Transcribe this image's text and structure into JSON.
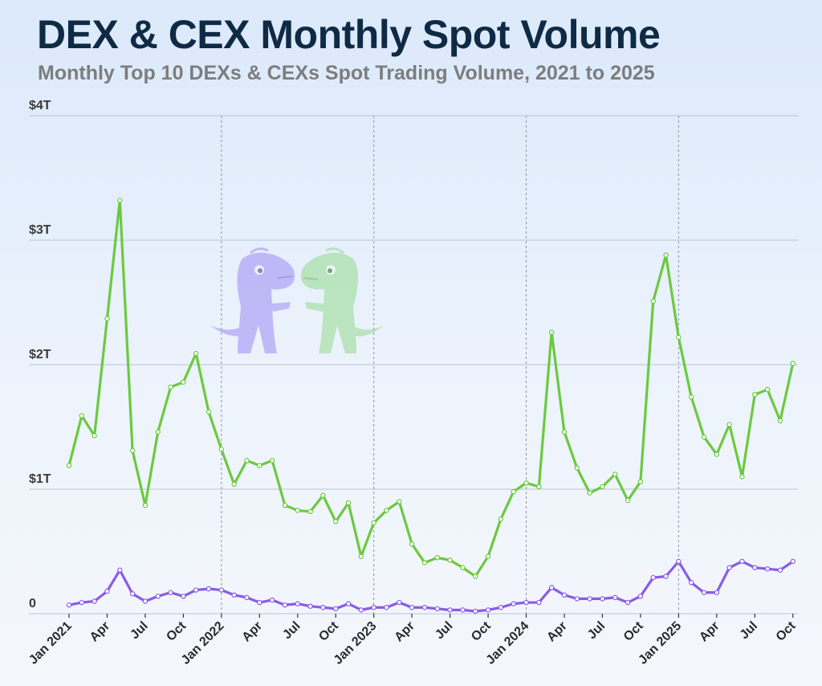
{
  "header": {
    "title": "DEX & CEX Monthly Spot Volume",
    "subtitle": "Monthly Top 10 DEXs & CEXs Spot Trading Volume, 2021 to 2025"
  },
  "colors": {
    "cex": "#6cc93f",
    "dex": "#8a5be8",
    "grid": "#b9c4d2",
    "year_divider": "#8a93a0"
  },
  "chart_data": {
    "type": "line",
    "x_unit": "month",
    "x_start": "2021-01",
    "ylim": [
      0,
      4
    ],
    "y_unit": "trillion USD",
    "yticks": [
      {
        "value": 0,
        "label": "0"
      },
      {
        "value": 1,
        "label": "$1T"
      },
      {
        "value": 2,
        "label": "$2T"
      },
      {
        "value": 3,
        "label": "$3T"
      },
      {
        "value": 4,
        "label": "$4T"
      }
    ],
    "xticks": [
      {
        "index": 0,
        "label": "Jan 2021"
      },
      {
        "index": 3,
        "label": "Apr"
      },
      {
        "index": 6,
        "label": "Jul"
      },
      {
        "index": 9,
        "label": "Oct"
      },
      {
        "index": 12,
        "label": "Jan 2022"
      },
      {
        "index": 15,
        "label": "Apr"
      },
      {
        "index": 18,
        "label": "Jul"
      },
      {
        "index": 21,
        "label": "Oct"
      },
      {
        "index": 24,
        "label": "Jan 2023"
      },
      {
        "index": 27,
        "label": "Apr"
      },
      {
        "index": 30,
        "label": "Jul"
      },
      {
        "index": 33,
        "label": "Oct"
      },
      {
        "index": 36,
        "label": "Jan 2024"
      },
      {
        "index": 39,
        "label": "Apr"
      },
      {
        "index": 42,
        "label": "Jul"
      },
      {
        "index": 45,
        "label": "Oct"
      },
      {
        "index": 48,
        "label": "Jan 2025"
      },
      {
        "index": 51,
        "label": "Apr"
      },
      {
        "index": 54,
        "label": "Jul"
      },
      {
        "index": 57,
        "label": "Oct"
      }
    ],
    "year_dividers": [
      12,
      24,
      36,
      48
    ],
    "grid": true,
    "series": [
      {
        "key": "cex",
        "values": [
          1.19,
          1.59,
          1.43,
          2.37,
          3.32,
          1.31,
          0.87,
          1.46,
          1.82,
          1.86,
          2.09,
          1.62,
          1.32,
          1.04,
          1.23,
          1.19,
          1.23,
          0.87,
          0.83,
          0.82,
          0.95,
          0.74,
          0.89,
          0.46,
          0.73,
          0.83,
          0.9,
          0.56,
          0.41,
          0.45,
          0.43,
          0.37,
          0.3,
          0.46,
          0.76,
          0.98,
          1.05,
          1.02,
          2.26,
          1.46,
          1.17,
          0.97,
          1.02,
          1.12,
          0.91,
          1.06,
          2.51,
          2.88,
          2.22,
          1.74,
          1.42,
          1.28,
          1.52,
          1.1,
          1.76,
          1.8,
          1.55,
          2.01
        ]
      },
      {
        "key": "dex",
        "values": [
          0.07,
          0.09,
          0.1,
          0.18,
          0.35,
          0.16,
          0.1,
          0.14,
          0.17,
          0.14,
          0.19,
          0.2,
          0.19,
          0.15,
          0.13,
          0.09,
          0.11,
          0.07,
          0.08,
          0.06,
          0.05,
          0.04,
          0.08,
          0.03,
          0.05,
          0.05,
          0.09,
          0.05,
          0.05,
          0.04,
          0.03,
          0.03,
          0.02,
          0.03,
          0.05,
          0.08,
          0.09,
          0.09,
          0.21,
          0.15,
          0.12,
          0.12,
          0.12,
          0.13,
          0.09,
          0.14,
          0.29,
          0.3,
          0.42,
          0.25,
          0.17,
          0.17,
          0.37,
          0.42,
          0.37,
          0.36,
          0.35,
          0.42
        ]
      }
    ]
  }
}
